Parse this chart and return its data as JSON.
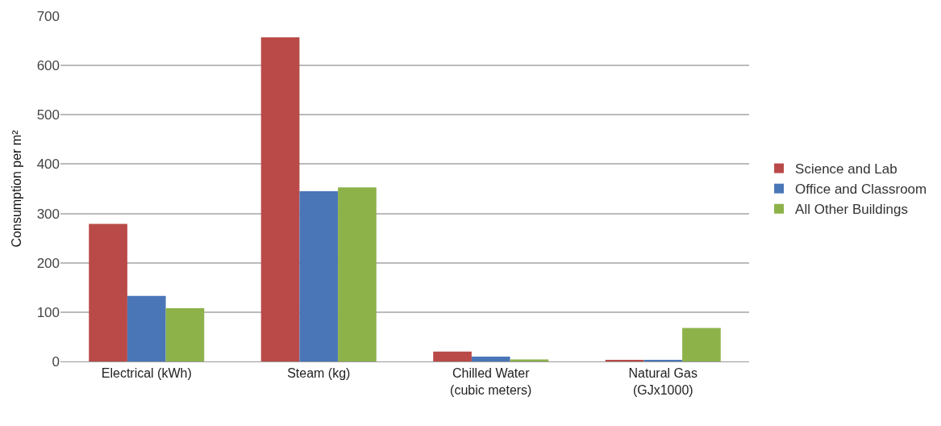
{
  "chart_data": {
    "type": "bar",
    "ylabel": "Consumption per m²",
    "categories": [
      "Electrical (kWh)",
      "Steam (kg)",
      "Chilled Water\n(cubic meters)",
      "Natural Gas\n(GJx1000)"
    ],
    "series": [
      {
        "name": "Science and Lab",
        "color": "#b94a48",
        "values": [
          279,
          657,
          20,
          2
        ]
      },
      {
        "name": "Office and Classroom",
        "color": "#4a76b8",
        "values": [
          133,
          345,
          10,
          2
        ]
      },
      {
        "name": "All Other Buildings",
        "color": "#8db24a",
        "values": [
          108,
          353,
          4,
          68
        ]
      }
    ],
    "ylim": [
      0,
      700
    ],
    "yticks": [
      0,
      100,
      200,
      300,
      400,
      500,
      600,
      700
    ],
    "grid": "y",
    "legend": "right"
  }
}
